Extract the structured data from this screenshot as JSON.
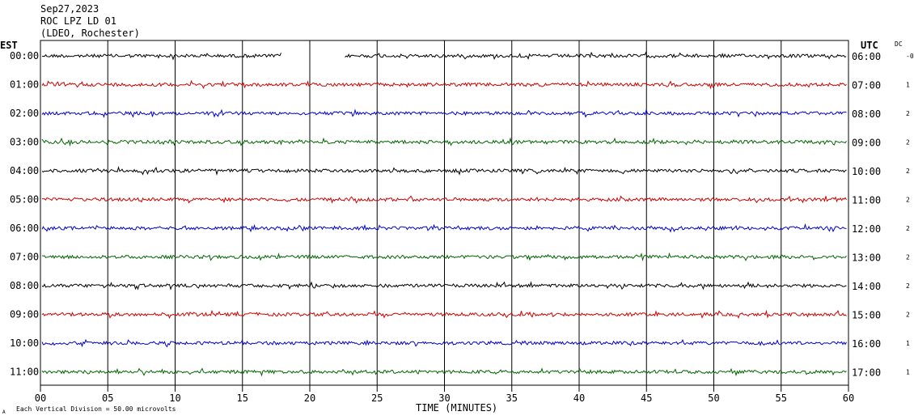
{
  "header": {
    "date": "Sep27,2023",
    "station": "ROC LPZ LD 01",
    "network": "(LDEO, Rochester)"
  },
  "left_axis_label": "EST",
  "right_axis_label": "UTC",
  "dc_label": "DC",
  "x_axis_label": "TIME (MINUTES)",
  "scale_note": "Each Vertical Division =   50.00 microvolts",
  "corner_mark": "A",
  "colors": {
    "black": "#000000",
    "red": "#cc0000",
    "blue": "#0000cc",
    "green": "#006600"
  },
  "chart_data": {
    "type": "line",
    "xlim": [
      0,
      60
    ],
    "x_ticks": [
      0,
      5,
      10,
      15,
      20,
      25,
      30,
      35,
      40,
      45,
      50,
      55,
      60
    ],
    "x_tick_labels": [
      "00",
      "05",
      "10",
      "15",
      "20",
      "25",
      "30",
      "35",
      "40",
      "45",
      "50",
      "55",
      "60"
    ],
    "grid": true,
    "rows": [
      {
        "est": "00:00",
        "utc": "06:00",
        "dc": "-0",
        "color": "#000000",
        "gap": [
          18,
          22.5
        ]
      },
      {
        "est": "01:00",
        "utc": "07:00",
        "dc": "1",
        "color": "#cc0000"
      },
      {
        "est": "02:00",
        "utc": "08:00",
        "dc": "2",
        "color": "#0000cc"
      },
      {
        "est": "03:00",
        "utc": "09:00",
        "dc": "2",
        "color": "#006600"
      },
      {
        "est": "04:00",
        "utc": "10:00",
        "dc": "2",
        "color": "#000000"
      },
      {
        "est": "05:00",
        "utc": "11:00",
        "dc": "2",
        "color": "#cc0000"
      },
      {
        "est": "06:00",
        "utc": "12:00",
        "dc": "2",
        "color": "#0000cc"
      },
      {
        "est": "07:00",
        "utc": "13:00",
        "dc": "2",
        "color": "#006600"
      },
      {
        "est": "08:00",
        "utc": "14:00",
        "dc": "2",
        "color": "#000000"
      },
      {
        "est": "09:00",
        "utc": "15:00",
        "dc": "2",
        "color": "#cc0000"
      },
      {
        "est": "10:00",
        "utc": "16:00",
        "dc": "1",
        "color": "#0000cc"
      },
      {
        "est": "11:00",
        "utc": "17:00",
        "dc": "1",
        "color": "#006600"
      }
    ]
  }
}
